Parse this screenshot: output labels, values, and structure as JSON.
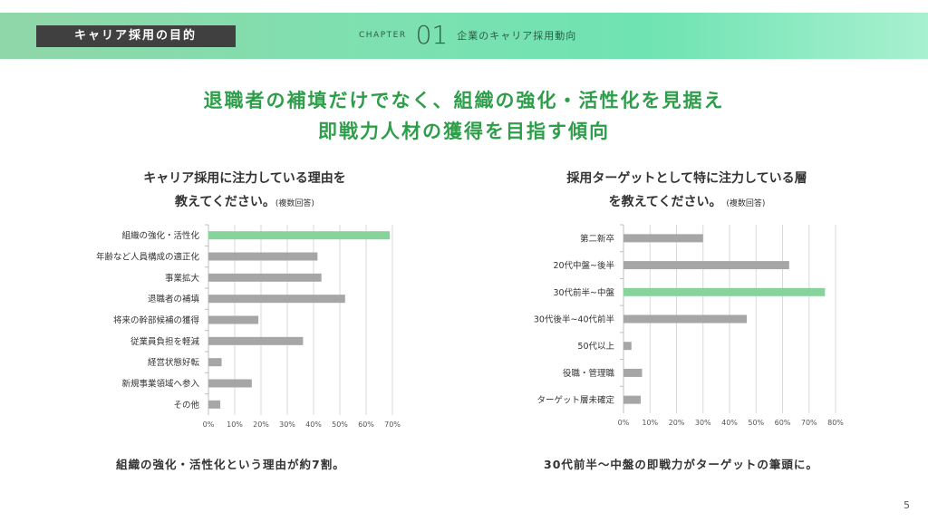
{
  "header": {
    "section_tag": "キャリア採用の目的",
    "chapter_label": "CHAPTER",
    "chapter_number": "01",
    "chapter_title": "企業のキャリア採用動向"
  },
  "headline": {
    "line1": "退職者の補填だけでなく、組織の強化・活性化を見据え",
    "line2": "即戦力人材の獲得を目指す傾向"
  },
  "colors": {
    "highlight": "#86d39c",
    "bar": "#a6a6a6",
    "headline": "#2e9e4a"
  },
  "chart_data": [
    {
      "type": "bar",
      "orientation": "horizontal",
      "title_line1": "キャリア採用に注力している理由を",
      "title_line2": "教えてください。",
      "note": "(複数回答)",
      "categories": [
        "組織の強化・活性化",
        "年齢など人員構成の適正化",
        "事業拡大",
        "退職者の補填",
        "将来の幹部候補の獲得",
        "従業員負担を軽減",
        "経営状態好転",
        "新規事業領域へ参入",
        "その他"
      ],
      "values": [
        69,
        41.5,
        43,
        52,
        19,
        36,
        5,
        16.5,
        4.5
      ],
      "highlight_index": 0,
      "xlim": [
        0,
        70
      ],
      "xticks": [
        "0%",
        "10%",
        "20%",
        "30%",
        "40%",
        "50%",
        "60%",
        "70%"
      ],
      "grid": true,
      "conclusion": "組織の強化・活性化という理由が約7割。"
    },
    {
      "type": "bar",
      "orientation": "horizontal",
      "title_line1": "採用ターゲットとして特に注力している層",
      "title_line2": "を教えてください。",
      "note": "(複数回答)",
      "categories": [
        "第二新卒",
        "20代中盤~後半",
        "30代前半~中盤",
        "30代後半~40代前半",
        "50代以上",
        "役職・管理職",
        "ターゲット層未確定"
      ],
      "values": [
        30,
        62.5,
        76,
        46.5,
        3,
        7,
        6.5
      ],
      "highlight_index": 2,
      "xlim": [
        0,
        80
      ],
      "xticks": [
        "0%",
        "10%",
        "20%",
        "30%",
        "40%",
        "50%",
        "60%",
        "70%",
        "80%"
      ],
      "grid": true,
      "conclusion": "30代前半～中盤の即戦力がターゲットの筆頭に。"
    }
  ],
  "page_number": "5"
}
